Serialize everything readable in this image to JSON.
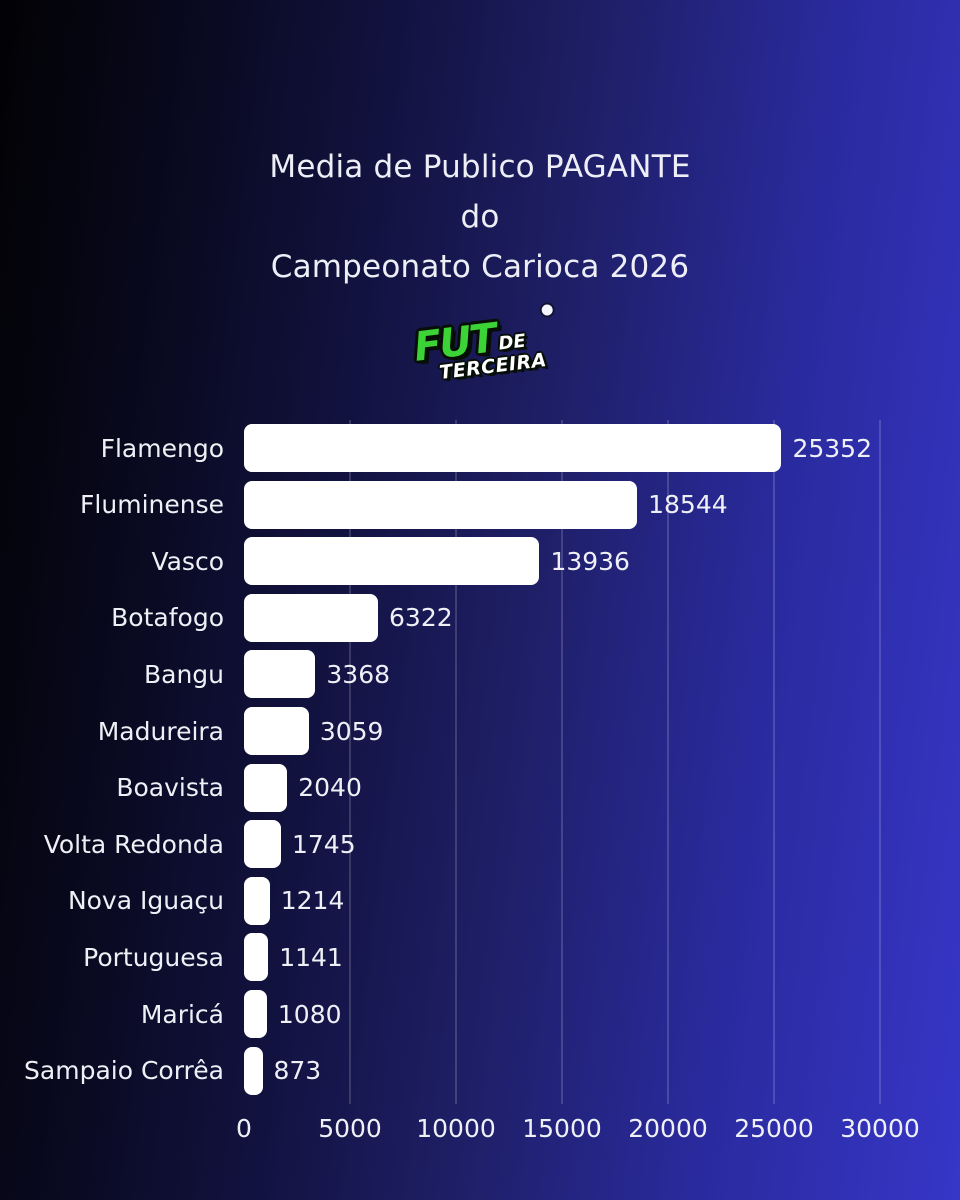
{
  "header": {
    "lines": [
      "Media de Publico PAGANTE",
      "do",
      "Campeonato Carioca 2026"
    ]
  },
  "logo": {
    "fut": "FUT",
    "de": "DE",
    "terceira": "TERCEIRA",
    "fut_color": "#3bd335",
    "ball_icon": "soccer-ball"
  },
  "chart_data": {
    "type": "bar",
    "orientation": "horizontal",
    "title": "Media de Publico PAGANTE do Campeonato Carioca 2026",
    "categories": [
      "Flamengo",
      "Fluminense",
      "Vasco",
      "Botafogo",
      "Bangu",
      "Madureira",
      "Boavista",
      "Volta Redonda",
      "Nova Iguaçu",
      "Portuguesa",
      "Maricá",
      "Sampaio Corrêa"
    ],
    "values": [
      25352,
      18544,
      13936,
      6322,
      3368,
      3059,
      2040,
      1745,
      1214,
      1141,
      1080,
      873
    ],
    "xlabel": "",
    "ylabel": "",
    "xlim": [
      0,
      30000
    ],
    "x_ticks": [
      0,
      5000,
      10000,
      15000,
      20000,
      25000,
      30000
    ],
    "grid": "vertical-only",
    "legend": "none",
    "bar_color": "#ffffff",
    "text_color": "#eef0f6",
    "gridline_color": "rgba(255,255,255,0.16)",
    "background_gradient": [
      "#020204",
      "#3636c8"
    ]
  }
}
